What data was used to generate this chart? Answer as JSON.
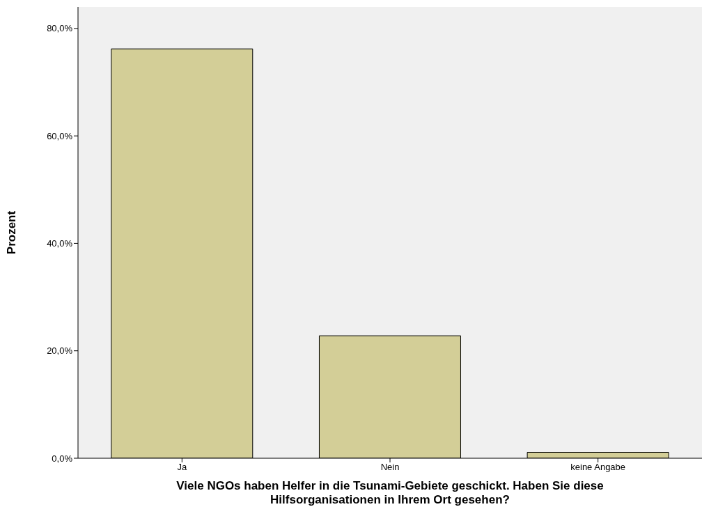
{
  "chart_data": {
    "type": "bar",
    "xlabel": "Viele NGOs haben Helfer in die Tsunami-Gebiete geschickt. Haben Sie diese Hilfsorganisationen in Ihrem Ort gesehen?",
    "ylabel": "Prozent",
    "categories": [
      "Ja",
      "Nein",
      "keine Angabe"
    ],
    "values": [
      76.2,
      22.8,
      1.1
    ],
    "color": "#d3ce97",
    "ylim": [
      0,
      84
    ],
    "yticks": [
      {
        "value": 0,
        "label": "0,0%"
      },
      {
        "value": 20,
        "label": "20,0%"
      },
      {
        "value": 40,
        "label": "40,0%"
      },
      {
        "value": 60,
        "label": "60,0%"
      },
      {
        "value": 80,
        "label": "80,0%"
      }
    ],
    "grid": false
  }
}
